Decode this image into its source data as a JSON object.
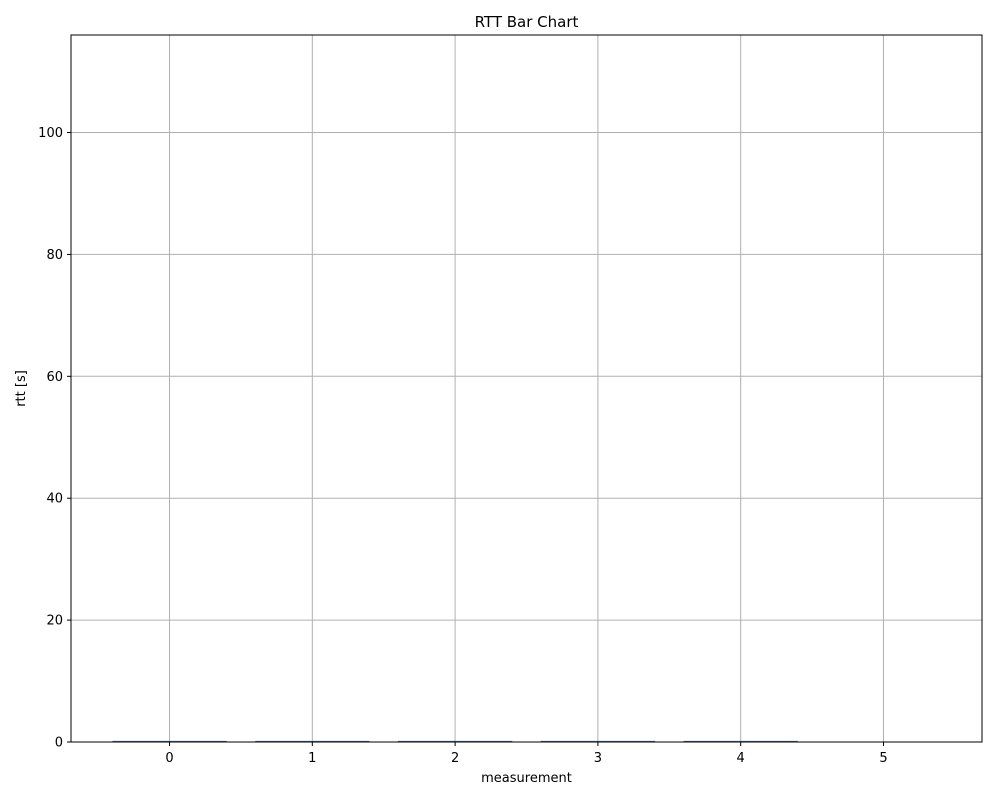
{
  "chart_data": {
    "type": "bar",
    "title": "RTT Bar Chart",
    "xlabel": "measurement",
    "ylabel": "rtt [s]",
    "categories": [
      "0",
      "1",
      "2",
      "3",
      "4"
    ],
    "x_tick_labels": [
      "0",
      "1",
      "2",
      "3",
      "4",
      "5"
    ],
    "x_ticks": [
      0,
      1,
      2,
      3,
      4,
      5
    ],
    "xlim": [
      -0.69,
      5.69
    ],
    "values": [
      0.0,
      0.0,
      0.0,
      0.0,
      0.0
    ],
    "ylim": [
      0,
      116
    ],
    "y_ticks": [
      0,
      20,
      40,
      60,
      80,
      100
    ],
    "y_tick_labels": [
      "0",
      "20",
      "40",
      "60",
      "80",
      "100"
    ],
    "grid": true,
    "bar_color": "#1f77b4",
    "grid_color": "#b0b0b0"
  }
}
